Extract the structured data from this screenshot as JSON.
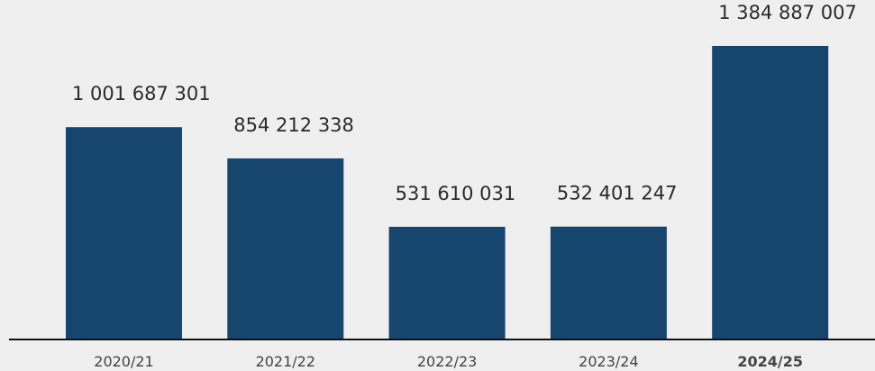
{
  "chart_data": {
    "type": "bar",
    "categories": [
      "2020/21",
      "2021/22",
      "2022/23",
      "2023/24",
      "2024/25"
    ],
    "values": [
      1001687301,
      854212338,
      531610031,
      532401247,
      1384887007
    ],
    "value_labels": [
      "1 001 687 301",
      "854 212 338",
      "531 610 031",
      "532 401 247",
      "1 384 887 007"
    ],
    "color": "#16456e",
    "highlight": 4
  }
}
